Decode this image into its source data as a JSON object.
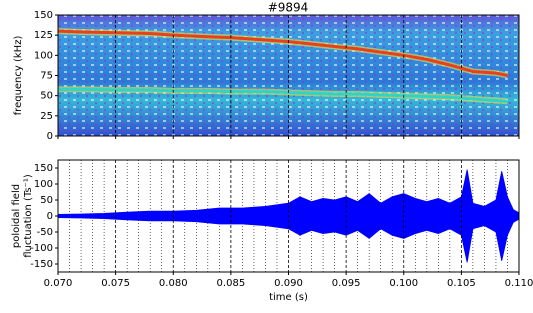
{
  "chart_data": [
    {
      "type": "line",
      "title": "#9894",
      "ylabel": [
        "frequency (kHz)"
      ],
      "xlim": [
        0.07,
        0.11
      ],
      "ylim": [
        0,
        150
      ],
      "yticks": [
        0,
        25,
        50,
        75,
        100,
        125,
        150
      ],
      "xticks": [
        0.07,
        0.075,
        0.08,
        0.085,
        0.09,
        0.095,
        0.1,
        0.105,
        0.11
      ],
      "grid": true,
      "x": [
        0.07,
        0.072,
        0.075,
        0.078,
        0.08,
        0.083,
        0.085,
        0.088,
        0.09,
        0.092,
        0.094,
        0.096,
        0.098,
        0.1,
        0.102,
        0.104,
        0.105,
        0.106,
        0.107,
        0.108,
        0.109
      ],
      "series": [
        {
          "color": "#e8401c",
          "values": [
            130,
            129,
            128,
            127,
            125,
            123,
            122,
            119,
            117,
            114,
            111,
            108,
            104,
            100,
            95,
            88,
            84,
            80,
            79,
            78,
            75
          ]
        },
        {
          "color": "#2fd3c8",
          "values": [
            58,
            58,
            57,
            57,
            56,
            56,
            55,
            55,
            54,
            53,
            52,
            52,
            51,
            50,
            49,
            48,
            47,
            46,
            45,
            44,
            43
          ]
        }
      ]
    },
    {
      "type": "area",
      "ylabel": [
        "poloidal field",
        "fluctuation (Ts⁻¹)"
      ],
      "xlabel": "time (s)",
      "xlim": [
        0.07,
        0.11
      ],
      "ylim": [
        -175,
        175
      ],
      "yticks": [
        -150,
        -100,
        -50,
        0,
        50,
        100,
        150
      ],
      "xticks": [
        {
          "value": 0.07,
          "label": "0.070"
        },
        {
          "value": 0.075,
          "label": "0.075"
        },
        {
          "value": 0.08,
          "label": "0.080"
        },
        {
          "value": 0.085,
          "label": "0.085"
        },
        {
          "value": 0.09,
          "label": "0.090"
        },
        {
          "value": 0.095,
          "label": "0.095"
        },
        {
          "value": 0.1,
          "label": "0.100"
        },
        {
          "value": 0.105,
          "label": "0.105"
        },
        {
          "value": 0.11,
          "label": "0.110"
        }
      ],
      "xminorticks": [
        0.071,
        0.072,
        0.073,
        0.074,
        0.076,
        0.077,
        0.078,
        0.079,
        0.081,
        0.082,
        0.083,
        0.084,
        0.086,
        0.087,
        0.088,
        0.089,
        0.091,
        0.092,
        0.093,
        0.094,
        0.096,
        0.097,
        0.098,
        0.099,
        0.101,
        0.102,
        0.103,
        0.104,
        0.106,
        0.107,
        0.108,
        0.109
      ],
      "grid": true,
      "color": "#0000ff",
      "x": [
        0.07,
        0.072,
        0.074,
        0.076,
        0.078,
        0.08,
        0.082,
        0.084,
        0.086,
        0.088,
        0.09,
        0.091,
        0.092,
        0.093,
        0.094,
        0.095,
        0.096,
        0.097,
        0.098,
        0.099,
        0.1,
        0.101,
        0.102,
        0.103,
        0.104,
        0.105,
        0.1055,
        0.106,
        0.107,
        0.108,
        0.1085,
        0.109,
        0.1095,
        0.11
      ],
      "values": [
        5,
        6,
        8,
        12,
        15,
        15,
        18,
        25,
        25,
        30,
        40,
        60,
        45,
        55,
        50,
        60,
        45,
        70,
        40,
        60,
        70,
        55,
        45,
        55,
        40,
        60,
        145,
        40,
        30,
        50,
        140,
        60,
        20,
        10
      ]
    }
  ]
}
